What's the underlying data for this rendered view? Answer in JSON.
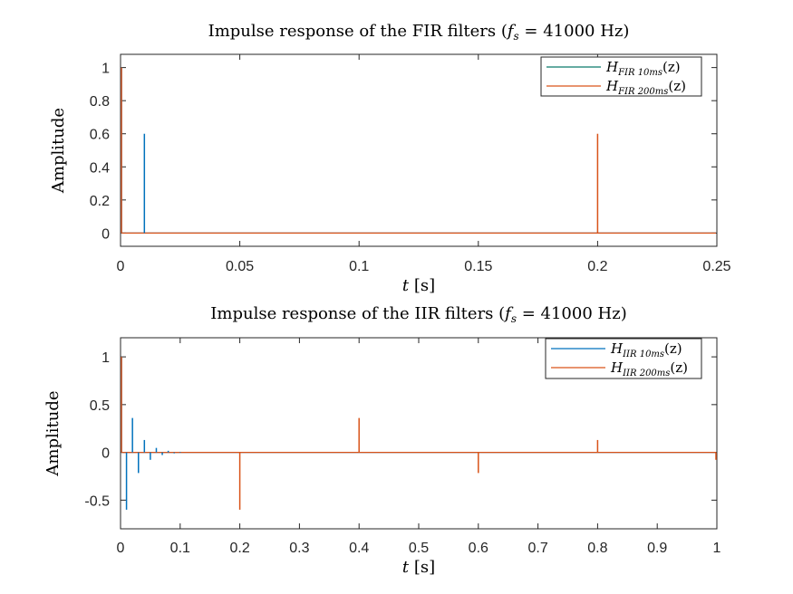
{
  "figure": {
    "colors": {
      "series_blue": "#0072BD",
      "series_orange": "#D95319",
      "legend_green": "#0B7A6A",
      "axis": "#262626",
      "background": "#FFFFFF"
    }
  },
  "chart_data": [
    {
      "type": "line",
      "title": "Impulse response of the FIR filters (f_s = 41000 Hz)",
      "title_parts": {
        "lead": "Impulse response of the FIR filters (",
        "fs": "f",
        "fs_sub": "s",
        "eq": " = 41000 Hz)"
      },
      "xlabel": "t [s]",
      "xlabel_parts": {
        "var": "t",
        "unit": " [s]"
      },
      "ylabel": "Amplitude",
      "xlim": [
        0,
        0.25
      ],
      "ylim": [
        -0.08,
        1.08
      ],
      "xticks": [
        0,
        0.05,
        0.1,
        0.15,
        0.2,
        0.25
      ],
      "xtick_labels": [
        "0",
        "0.05",
        "0.1",
        "0.15",
        "0.2",
        "0.25"
      ],
      "yticks": [
        0,
        0.2,
        0.4,
        0.6,
        0.8,
        1
      ],
      "ytick_labels": [
        "0",
        "0.2",
        "0.4",
        "0.6",
        "0.8",
        "1"
      ],
      "grid": false,
      "legend": "top-right",
      "series": [
        {
          "name": "H_FIR 10ms(z)",
          "legend_main": "H",
          "legend_sub": "FIR 10ms",
          "legend_tail": "(z)",
          "color": "#0072BD",
          "legend_color": "#0B7A6A",
          "impulses": [
            {
              "x": 0.0,
              "y": 1.0
            },
            {
              "x": 0.01,
              "y": 0.6
            }
          ]
        },
        {
          "name": "H_FIR 200ms(z)",
          "legend_main": "H",
          "legend_sub": "FIR 200ms",
          "legend_tail": "(z)",
          "color": "#D95319",
          "legend_color": "#D95319",
          "impulses": [
            {
              "x": 0.0,
              "y": 1.0
            },
            {
              "x": 0.2,
              "y": 0.6
            }
          ]
        }
      ]
    },
    {
      "type": "line",
      "title": "Impulse response of the IIR filters (f_s = 41000 Hz)",
      "title_parts": {
        "lead": "Impulse response of the IIR filters (",
        "fs": "f",
        "fs_sub": "s",
        "eq": " = 41000 Hz)"
      },
      "xlabel": "t [s]",
      "xlabel_parts": {
        "var": "t",
        "unit": " [s]"
      },
      "ylabel": "Amplitude",
      "xlim": [
        0,
        1
      ],
      "ylim": [
        -0.8,
        1.2
      ],
      "xticks": [
        0,
        0.1,
        0.2,
        0.3,
        0.4,
        0.5,
        0.6,
        0.7,
        0.8,
        0.9,
        1
      ],
      "xtick_labels": [
        "0",
        "0.1",
        "0.2",
        "0.3",
        "0.4",
        "0.5",
        "0.6",
        "0.7",
        "0.8",
        "0.9",
        "1"
      ],
      "yticks": [
        -0.5,
        0,
        0.5,
        1
      ],
      "ytick_labels": [
        "-0.5",
        "0",
        "0.5",
        "1"
      ],
      "grid": false,
      "legend": "top-right",
      "series": [
        {
          "name": "H_IIR 10ms(z)",
          "legend_main": "H",
          "legend_sub": "IIR 10ms",
          "legend_tail": "(z)",
          "color": "#0072BD",
          "legend_color": "#0072BD",
          "impulses": [
            {
              "x": 0.0,
              "y": 1.0
            },
            {
              "x": 0.01,
              "y": -0.6
            },
            {
              "x": 0.02,
              "y": 0.36
            },
            {
              "x": 0.03,
              "y": -0.216
            },
            {
              "x": 0.04,
              "y": 0.1296
            },
            {
              "x": 0.05,
              "y": -0.0778
            },
            {
              "x": 0.06,
              "y": 0.0467
            },
            {
              "x": 0.07,
              "y": -0.028
            },
            {
              "x": 0.08,
              "y": 0.0168
            },
            {
              "x": 0.09,
              "y": -0.0101
            },
            {
              "x": 0.1,
              "y": 0.006
            }
          ]
        },
        {
          "name": "H_IIR 200ms(z)",
          "legend_main": "H",
          "legend_sub": "IIR 200ms",
          "legend_tail": "(z)",
          "color": "#D95319",
          "legend_color": "#D95319",
          "impulses": [
            {
              "x": 0.0,
              "y": 1.0
            },
            {
              "x": 0.2,
              "y": -0.6
            },
            {
              "x": 0.4,
              "y": 0.36
            },
            {
              "x": 0.6,
              "y": -0.216
            },
            {
              "x": 0.8,
              "y": 0.1296
            },
            {
              "x": 1.0,
              "y": -0.0778
            }
          ]
        }
      ]
    }
  ]
}
